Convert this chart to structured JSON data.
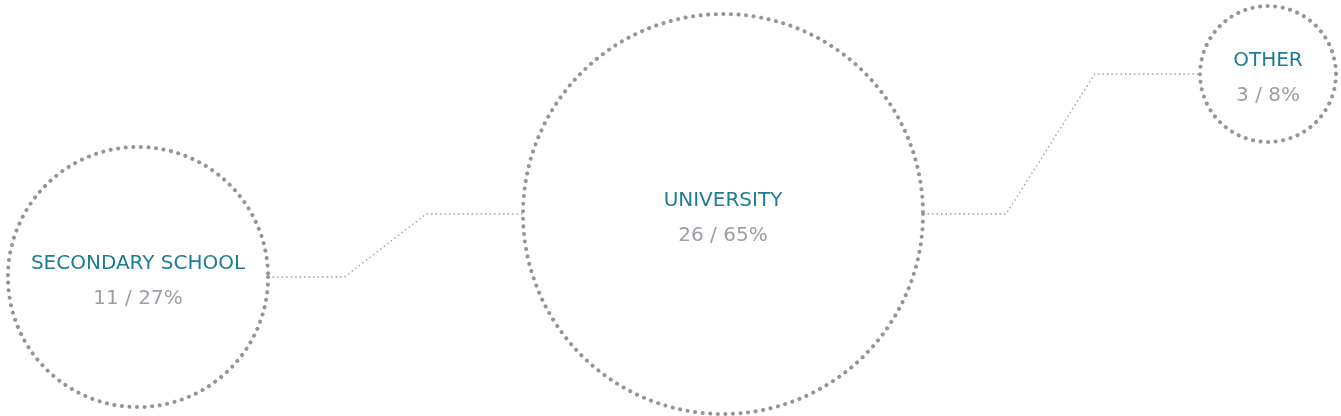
{
  "chart_data": {
    "type": "other",
    "categories": [
      "SECONDARY SCHOOL",
      "UNIVERSITY",
      "OTHER"
    ],
    "values": [
      11,
      26,
      3
    ],
    "value_labels": [
      "11 / 27%",
      "26 / 65%",
      "3 / 8%"
    ],
    "color": "#8f969c"
  }
}
